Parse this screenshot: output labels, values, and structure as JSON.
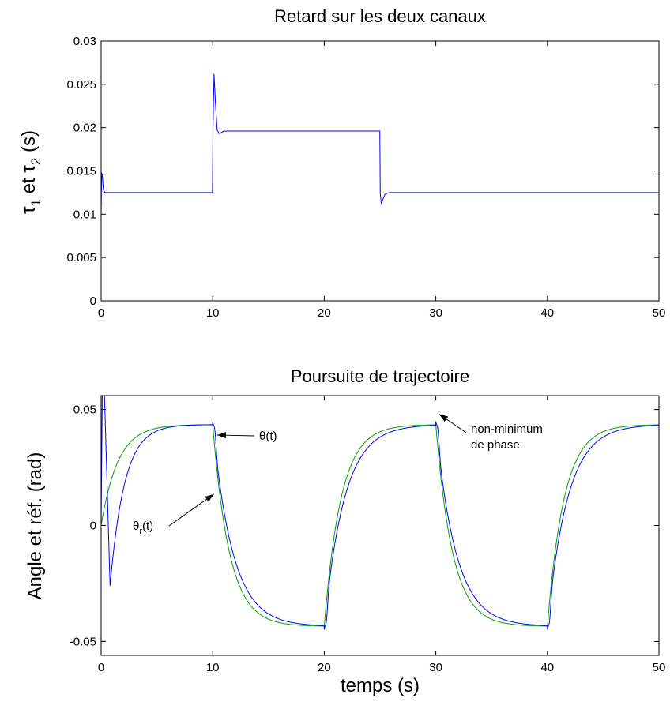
{
  "chart_data": [
    {
      "type": "line",
      "title": "Retard sur les deux canaux",
      "ylabel_parts": {
        "tau": "τ",
        "sub1": "1",
        "mid": " et ",
        "sub2": "2",
        "unit": " (s)"
      },
      "xlim": [
        0,
        50
      ],
      "ylim": [
        0,
        0.03
      ],
      "xticks": [
        0,
        10,
        20,
        30,
        40,
        50
      ],
      "xtick_labels": [
        "0",
        "10",
        "20",
        "30",
        "40",
        "50"
      ],
      "yticks": [
        0,
        0.005,
        0.01,
        0.015,
        0.02,
        0.025,
        0.03
      ],
      "ytick_labels": [
        "0",
        "0.005",
        "0.01",
        "0.015",
        "0.02",
        "0.025",
        "0.03"
      ],
      "grid": false,
      "series": [
        {
          "color": "#0000ff",
          "x": [
            0,
            0.05,
            0.12,
            0.2,
            0.35,
            0.6,
            1.0,
            5.0,
            9.98,
            10.02,
            10.12,
            10.25,
            10.4,
            10.6,
            11.0,
            15.0,
            20.0,
            24.98,
            25.02,
            25.12,
            25.25,
            25.45,
            25.8,
            30.0,
            40.0,
            50.0
          ],
          "y": [
            0.01,
            0.0148,
            0.0143,
            0.0128,
            0.0125,
            0.0125,
            0.0125,
            0.0125,
            0.0125,
            0.0195,
            0.0262,
            0.0228,
            0.0197,
            0.0193,
            0.0196,
            0.0196,
            0.0196,
            0.0196,
            0.0124,
            0.0112,
            0.0117,
            0.0123,
            0.0125,
            0.0125,
            0.0125,
            0.0125
          ]
        }
      ]
    },
    {
      "type": "line",
      "title": "Poursuite de trajectoire",
      "ylabel": "Angle et réf. (rad)",
      "xlabel": "temps (s)",
      "xlim": [
        0,
        50
      ],
      "ylim": [
        -0.056,
        0.056
      ],
      "xticks": [
        0,
        10,
        20,
        30,
        40,
        50
      ],
      "xtick_labels": [
        "0",
        "10",
        "20",
        "30",
        "40",
        "50"
      ],
      "yticks": [
        -0.05,
        0,
        0.05
      ],
      "ytick_labels": [
        "-0.05",
        "0",
        "0.05"
      ],
      "grid": false,
      "reference": {
        "amplitude": 0.0435,
        "period": 20,
        "tau": 1.5,
        "color": "#00a000"
      },
      "output": {
        "amplitude": 0.0435,
        "period": 20,
        "tau": 1.8,
        "undershoot": 0.0065,
        "initial_spike": 0.056,
        "initial_dip": -0.026,
        "color": "#0000ff"
      },
      "annotations": [
        {
          "text": "θ(t)",
          "target_x": 10.4,
          "target_y": 0.039
        },
        {
          "text_main": "θ",
          "text_sub": "r",
          "text_tail": "(t)",
          "target_x": 10.1,
          "target_y": 0.0135
        },
        {
          "text_lines": [
            "non-minimum",
            "de phase"
          ],
          "target_x": 30.3,
          "target_y": 0.048
        }
      ]
    }
  ]
}
